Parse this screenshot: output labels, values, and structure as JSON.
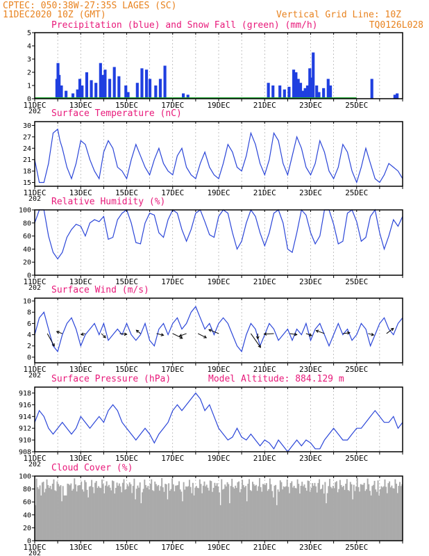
{
  "header": {
    "line1": "CPTEC:  050:38W-27:35S  LAGES (SC)",
    "line2": "11DEC2020 10Z (GMT)",
    "grid_note": "Vertical Grid Line: 10Z",
    "run_id": "TQ0126L028"
  },
  "x_axis": {
    "labels": [
      "11DEC",
      "13DEC",
      "15DEC",
      "17DEC",
      "19DEC",
      "21DEC",
      "23DEC",
      "25DEC"
    ],
    "stub": "202"
  },
  "colors": {
    "precip": "#1f3fe0",
    "snow": "#22aa33",
    "line": "#2a45d8",
    "cloud": "#aaaaaa",
    "title": "#e8197a",
    "header": "#e8821e"
  },
  "chart_data": [
    {
      "type": "bar",
      "title": "Precipitation (blue) and Snow Fall (green) (mm/h)",
      "ylim": [
        0,
        5
      ],
      "yticks": [
        "0",
        "1",
        "2",
        "3",
        "4",
        "5"
      ],
      "series": [
        {
          "name": "Precipitation",
          "points": [
            [
              0.9,
              1.5
            ],
            [
              0.95,
              2.7
            ],
            [
              1.0,
              1.8
            ],
            [
              1.1,
              1.0
            ],
            [
              1.3,
              0.6
            ],
            [
              1.6,
              0.4
            ],
            [
              1.8,
              0.7
            ],
            [
              1.9,
              1.5
            ],
            [
              2.0,
              1.0
            ],
            [
              2.2,
              2.0
            ],
            [
              2.4,
              1.4
            ],
            [
              2.6,
              1.2
            ],
            [
              2.8,
              2.7
            ],
            [
              2.9,
              1.8
            ],
            [
              3.0,
              2.2
            ],
            [
              3.2,
              1.5
            ],
            [
              3.4,
              2.4
            ],
            [
              3.6,
              1.7
            ],
            [
              3.9,
              1.0
            ],
            [
              4.0,
              0.5
            ],
            [
              4.4,
              1.2
            ],
            [
              4.6,
              2.3
            ],
            [
              4.8,
              2.2
            ],
            [
              4.95,
              1.5
            ],
            [
              5.2,
              1.0
            ],
            [
              5.4,
              1.5
            ],
            [
              5.6,
              2.5
            ],
            [
              6.4,
              0.4
            ],
            [
              6.6,
              0.3
            ],
            [
              10.1,
              1.2
            ],
            [
              10.3,
              1.0
            ],
            [
              10.6,
              1.0
            ],
            [
              10.8,
              0.7
            ],
            [
              11.0,
              0.9
            ],
            [
              11.2,
              2.2
            ],
            [
              11.3,
              2.0
            ],
            [
              11.4,
              1.5
            ],
            [
              11.5,
              1.2
            ],
            [
              11.6,
              0.6
            ],
            [
              11.7,
              0.8
            ],
            [
              11.8,
              1.0
            ],
            [
              11.9,
              2.3
            ],
            [
              12.0,
              1.6
            ],
            [
              12.05,
              3.5
            ],
            [
              12.2,
              1.0
            ],
            [
              12.3,
              0.5
            ],
            [
              12.5,
              0.8
            ],
            [
              12.7,
              1.5
            ],
            [
              12.8,
              1.0
            ],
            [
              14.6,
              1.5
            ],
            [
              15.6,
              0.3
            ],
            [
              15.7,
              0.4
            ]
          ]
        },
        {
          "name": "Snow Fall",
          "points": [
            [
              0.5,
              0.05
            ],
            [
              1.5,
              0.05
            ],
            [
              2.5,
              0.05
            ],
            [
              3.5,
              0.05
            ],
            [
              4.5,
              0.05
            ],
            [
              5.5,
              0.05
            ],
            [
              6.5,
              0.05
            ],
            [
              7.5,
              0.05
            ],
            [
              8.5,
              0.05
            ],
            [
              9.5,
              0.05
            ],
            [
              10.5,
              0.05
            ],
            [
              11.5,
              0.05
            ],
            [
              12.5,
              0.05
            ],
            [
              13.5,
              0.05
            ]
          ]
        }
      ]
    },
    {
      "type": "line",
      "title": "Surface Temperature (nC)",
      "ylim": [
        14,
        31
      ],
      "yticks": [
        "15",
        "18",
        "21",
        "24",
        "27",
        "30"
      ],
      "x": [
        0,
        0.2,
        0.4,
        0.6,
        0.8,
        1.0,
        1.1,
        1.2,
        1.4,
        1.6,
        1.8,
        2.0,
        2.2,
        2.4,
        2.6,
        2.8,
        3.0,
        3.2,
        3.4,
        3.6,
        3.8,
        4.0,
        4.2,
        4.4,
        4.6,
        4.8,
        5.0,
        5.2,
        5.4,
        5.6,
        5.8,
        6.0,
        6.2,
        6.4,
        6.6,
        6.8,
        7.0,
        7.2,
        7.4,
        7.6,
        7.8,
        8.0,
        8.2,
        8.4,
        8.6,
        8.8,
        9.0,
        9.2,
        9.4,
        9.6,
        9.8,
        10.0,
        10.2,
        10.4,
        10.6,
        10.8,
        11.0,
        11.2,
        11.4,
        11.6,
        11.8,
        12.0,
        12.2,
        12.4,
        12.6,
        12.8,
        13.0,
        13.2,
        13.4,
        13.6,
        13.8,
        14.0,
        14.2,
        14.4,
        14.6,
        14.8,
        15.0,
        15.2,
        15.4,
        15.6,
        15.8,
        16.0
      ],
      "values": [
        21,
        15,
        15,
        20,
        28,
        29,
        26,
        24,
        19,
        16,
        20,
        26,
        25,
        21,
        18,
        16,
        23,
        26,
        24,
        19,
        18,
        16,
        21,
        25,
        22,
        19,
        17,
        21,
        24,
        20,
        18,
        17,
        22,
        24,
        19,
        17,
        16,
        20,
        23,
        19,
        17,
        16,
        20,
        25,
        23,
        19,
        18,
        22,
        28,
        25,
        20,
        17,
        21,
        28,
        26,
        20,
        17,
        22,
        27,
        24,
        19,
        17,
        20,
        26,
        23,
        18,
        16,
        19,
        25,
        23,
        18,
        15,
        19,
        24,
        20,
        16,
        15,
        17,
        20,
        19,
        18,
        16
      ]
    },
    {
      "type": "line",
      "title": "Relative Humidity (%)",
      "ylim": [
        0,
        100
      ],
      "yticks": [
        "0",
        "20",
        "40",
        "60",
        "80",
        "100"
      ],
      "x": [
        0,
        0.2,
        0.4,
        0.6,
        0.8,
        1.0,
        1.2,
        1.4,
        1.6,
        1.8,
        2.0,
        2.2,
        2.4,
        2.6,
        2.8,
        3.0,
        3.2,
        3.4,
        3.6,
        3.8,
        4.0,
        4.2,
        4.4,
        4.6,
        4.8,
        5.0,
        5.2,
        5.4,
        5.6,
        5.8,
        6.0,
        6.2,
        6.4,
        6.6,
        6.8,
        7.0,
        7.2,
        7.4,
        7.6,
        7.8,
        8.0,
        8.2,
        8.4,
        8.6,
        8.8,
        9.0,
        9.2,
        9.4,
        9.6,
        9.8,
        10.0,
        10.2,
        10.4,
        10.6,
        10.8,
        11.0,
        11.2,
        11.4,
        11.6,
        11.8,
        12.0,
        12.2,
        12.4,
        12.6,
        12.8,
        13.0,
        13.2,
        13.4,
        13.6,
        13.8,
        14.0,
        14.2,
        14.4,
        14.6,
        14.8,
        15.0,
        15.2,
        15.4,
        15.6,
        15.8,
        16.0
      ],
      "values": [
        80,
        100,
        100,
        60,
        35,
        25,
        35,
        58,
        70,
        78,
        75,
        60,
        80,
        85,
        82,
        90,
        55,
        58,
        85,
        95,
        100,
        80,
        50,
        48,
        80,
        95,
        92,
        65,
        58,
        85,
        100,
        95,
        70,
        52,
        70,
        95,
        100,
        82,
        62,
        58,
        90,
        100,
        95,
        65,
        40,
        52,
        80,
        100,
        90,
        65,
        45,
        65,
        95,
        100,
        80,
        40,
        35,
        65,
        100,
        92,
        65,
        48,
        60,
        100,
        100,
        78,
        48,
        52,
        95,
        100,
        82,
        52,
        58,
        90,
        100,
        65,
        40,
        60,
        85,
        75,
        90
      ]
    },
    {
      "type": "line",
      "title": "Surface Wind (m/s)",
      "ylim": [
        -1,
        10.5
      ],
      "yticks": [
        "0",
        "2",
        "4",
        "6",
        "8",
        "10"
      ],
      "x": [
        0,
        0.2,
        0.4,
        0.6,
        0.8,
        1.0,
        1.2,
        1.4,
        1.6,
        1.8,
        2.0,
        2.2,
        2.4,
        2.6,
        2.8,
        3.0,
        3.2,
        3.4,
        3.6,
        3.8,
        4.0,
        4.2,
        4.4,
        4.6,
        4.8,
        5.0,
        5.2,
        5.4,
        5.6,
        5.8,
        6.0,
        6.2,
        6.4,
        6.6,
        6.8,
        7.0,
        7.2,
        7.4,
        7.6,
        7.8,
        8.0,
        8.2,
        8.4,
        8.6,
        8.8,
        9.0,
        9.2,
        9.4,
        9.6,
        9.8,
        10.0,
        10.2,
        10.4,
        10.6,
        10.8,
        11.0,
        11.2,
        11.4,
        11.6,
        11.8,
        12.0,
        12.2,
        12.4,
        12.6,
        12.8,
        13.0,
        13.2,
        13.4,
        13.6,
        13.8,
        14.0,
        14.2,
        14.4,
        14.6,
        14.8,
        15.0,
        15.2,
        15.4,
        15.6,
        15.8,
        16.0
      ],
      "values": [
        4,
        7,
        8,
        5,
        2,
        1,
        4,
        6,
        7,
        5,
        2,
        4,
        5,
        6,
        4,
        6,
        3,
        4,
        5,
        4,
        6,
        4,
        3,
        4,
        6,
        3,
        2,
        5,
        6,
        4,
        6,
        7,
        5,
        6,
        8,
        9,
        7,
        5,
        6,
        4,
        6,
        7,
        6,
        4,
        2,
        1,
        4,
        6,
        5,
        2,
        4,
        6,
        5,
        3,
        4,
        5,
        3,
        5,
        4,
        6,
        3,
        5,
        6,
        4,
        2,
        4,
        6,
        4,
        5,
        3,
        4,
        6,
        5,
        2,
        4,
        6,
        7,
        5,
        4,
        6,
        7
      ]
    },
    {
      "type": "line",
      "title": "Surface Pressure (hPa)",
      "annotation": "Model Altitude: 884.129 m",
      "ylim": [
        908,
        919
      ],
      "yticks": [
        "908",
        "910",
        "912",
        "914",
        "916",
        "918"
      ],
      "x": [
        0,
        0.2,
        0.4,
        0.6,
        0.8,
        1.0,
        1.2,
        1.4,
        1.6,
        1.8,
        2.0,
        2.2,
        2.4,
        2.6,
        2.8,
        3.0,
        3.2,
        3.4,
        3.6,
        3.8,
        4.0,
        4.2,
        4.4,
        4.6,
        4.8,
        5.0,
        5.2,
        5.4,
        5.6,
        5.8,
        6.0,
        6.2,
        6.4,
        6.6,
        6.8,
        7.0,
        7.2,
        7.4,
        7.6,
        7.8,
        8.0,
        8.2,
        8.4,
        8.6,
        8.8,
        9.0,
        9.2,
        9.4,
        9.6,
        9.8,
        10.0,
        10.2,
        10.4,
        10.6,
        10.8,
        11.0,
        11.2,
        11.4,
        11.6,
        11.8,
        12.0,
        12.2,
        12.4,
        12.6,
        12.8,
        13.0,
        13.2,
        13.4,
        13.6,
        13.8,
        14.0,
        14.2,
        14.4,
        14.6,
        14.8,
        15.0,
        15.2,
        15.4,
        15.6,
        15.8,
        16.0
      ],
      "values": [
        913,
        915,
        914,
        912,
        911,
        912,
        913,
        912,
        911,
        912,
        914,
        913,
        912,
        913,
        914,
        913,
        915,
        916,
        915,
        913,
        912,
        911,
        910,
        911,
        912,
        911,
        909.5,
        911,
        912,
        913,
        915,
        916,
        915,
        916,
        917,
        918,
        917,
        915,
        916,
        914,
        912,
        911,
        910,
        910.5,
        912,
        910.5,
        910,
        911,
        910,
        909,
        910,
        909.5,
        908.5,
        910,
        909,
        908,
        909,
        910,
        909,
        910,
        909.5,
        908.5,
        908.5,
        910,
        911,
        912,
        911,
        910,
        910,
        911,
        912,
        912,
        913,
        914,
        915,
        914,
        913,
        913,
        914,
        912,
        913
      ]
    },
    {
      "type": "bar",
      "title": "Cloud Cover (%)",
      "ylim": [
        0,
        100
      ],
      "yticks": [
        "0",
        "20",
        "40",
        "60",
        "80",
        "100"
      ]
    }
  ]
}
